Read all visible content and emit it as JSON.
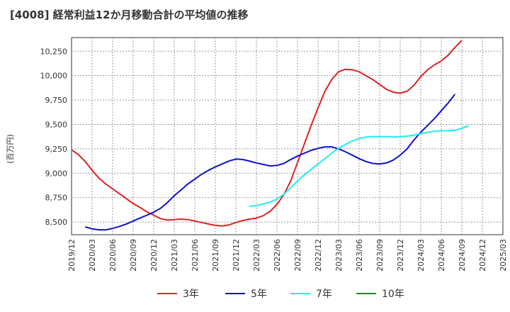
{
  "chart_data": {
    "type": "line",
    "title": "[4008]  経常利益12か月移動合計の平均値の推移",
    "ylabel": "(百万円)",
    "xlabel": "",
    "ylim": [
      8370,
      10390
    ],
    "yticks": [
      8500,
      8750,
      9000,
      9250,
      9500,
      9750,
      10000,
      10250
    ],
    "ytick_labels": [
      "8,500",
      "8,750",
      "9,000",
      "9,250",
      "9,500",
      "9,750",
      "10,000",
      "10,250"
    ],
    "xticks": [
      "2019/12",
      "2020/03",
      "2020/06",
      "2020/09",
      "2020/12",
      "2021/03",
      "2021/06",
      "2021/09",
      "2021/12",
      "2022/03",
      "2022/06",
      "2022/09",
      "2022/12",
      "2023/03",
      "2023/06",
      "2023/09",
      "2023/12",
      "2024/03",
      "2024/06",
      "2024/09",
      "2024/12",
      "2025/03"
    ],
    "grid": true,
    "legend_position": "bottom",
    "series": [
      {
        "name": "3年",
        "color": "#dd2222",
        "start": "2019/12",
        "values": [
          9240,
          9190,
          9120,
          9030,
          8950,
          8890,
          8840,
          8790,
          8740,
          8690,
          8650,
          8605,
          8570,
          8535,
          8520,
          8525,
          8530,
          8525,
          8510,
          8495,
          8480,
          8465,
          8460,
          8470,
          8495,
          8515,
          8530,
          8540,
          8565,
          8610,
          8680,
          8780,
          8920,
          9110,
          9300,
          9490,
          9670,
          9840,
          9960,
          10040,
          10065,
          10060,
          10040,
          10000,
          9960,
          9910,
          9860,
          9830,
          9820,
          9840,
          9900,
          9990,
          10060,
          10110,
          10150,
          10210,
          10290,
          10360
        ]
      },
      {
        "name": "5年",
        "color": "#1111cc",
        "start": "2020/02",
        "values": [
          8450,
          8430,
          8420,
          8420,
          8435,
          8455,
          8480,
          8510,
          8540,
          8570,
          8600,
          8640,
          8700,
          8770,
          8830,
          8890,
          8940,
          8990,
          9030,
          9065,
          9095,
          9125,
          9145,
          9140,
          9125,
          9105,
          9090,
          9075,
          9080,
          9100,
          9140,
          9175,
          9205,
          9235,
          9255,
          9270,
          9270,
          9250,
          9220,
          9185,
          9150,
          9120,
          9100,
          9095,
          9105,
          9135,
          9185,
          9250,
          9340,
          9420,
          9490,
          9560,
          9640,
          9720,
          9810
        ]
      },
      {
        "name": "7年",
        "color": "#22eeee",
        "start": "2022/02",
        "values": [
          8660,
          8670,
          8685,
          8705,
          8735,
          8785,
          8850,
          8920,
          8985,
          9040,
          9095,
          9150,
          9205,
          9255,
          9295,
          9330,
          9355,
          9370,
          9375,
          9375,
          9375,
          9372,
          9375,
          9380,
          9390,
          9405,
          9420,
          9430,
          9435,
          9435,
          9440,
          9460,
          9485
        ]
      },
      {
        "name": "10年",
        "color": "#228822",
        "start": "2024/12",
        "values": []
      }
    ]
  }
}
